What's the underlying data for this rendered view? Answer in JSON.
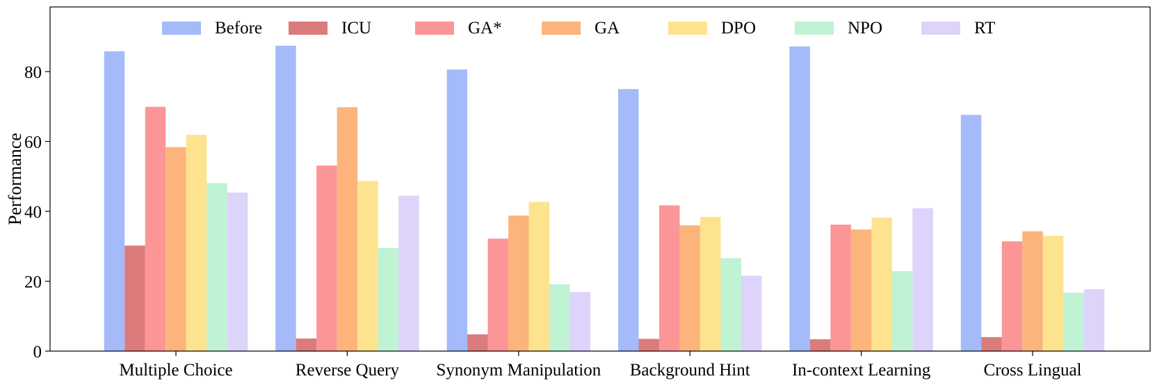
{
  "chart_data": {
    "type": "bar",
    "ylabel": "Performance",
    "xlabel": "",
    "ylim": [
      0,
      98.5
    ],
    "yticks": [
      0,
      20,
      40,
      60,
      80
    ],
    "grid": false,
    "legend_placement": "top",
    "categories": [
      "Multiple Choice",
      "Reverse Query",
      "Synonym Manipulation",
      "Background Hint",
      "In-context Learning",
      "Cross Lingual"
    ],
    "series": [
      {
        "name": "Before",
        "color": "#a4baf9",
        "values": [
          85.8,
          87.4,
          80.6,
          75.0,
          87.2,
          67.6
        ]
      },
      {
        "name": "ICU",
        "color": "#dc7b7b",
        "values": [
          30.2,
          3.6,
          4.8,
          3.5,
          3.4,
          4.0
        ]
      },
      {
        "name": "GA*",
        "color": "#fb9596",
        "values": [
          69.9,
          53.1,
          32.2,
          41.7,
          36.2,
          31.4
        ]
      },
      {
        "name": "GA",
        "color": "#fcb47c",
        "values": [
          58.4,
          69.8,
          38.8,
          36.0,
          34.8,
          34.3
        ]
      },
      {
        "name": "DPO",
        "color": "#fee38f",
        "values": [
          61.9,
          48.7,
          42.7,
          38.4,
          38.2,
          33.0
        ]
      },
      {
        "name": "NPO",
        "color": "#c0f2d4",
        "values": [
          48.1,
          29.5,
          19.1,
          26.6,
          22.9,
          16.7
        ]
      },
      {
        "name": "RT",
        "color": "#ddd3fb",
        "values": [
          45.4,
          44.5,
          16.9,
          21.6,
          40.9,
          17.7
        ]
      }
    ]
  }
}
